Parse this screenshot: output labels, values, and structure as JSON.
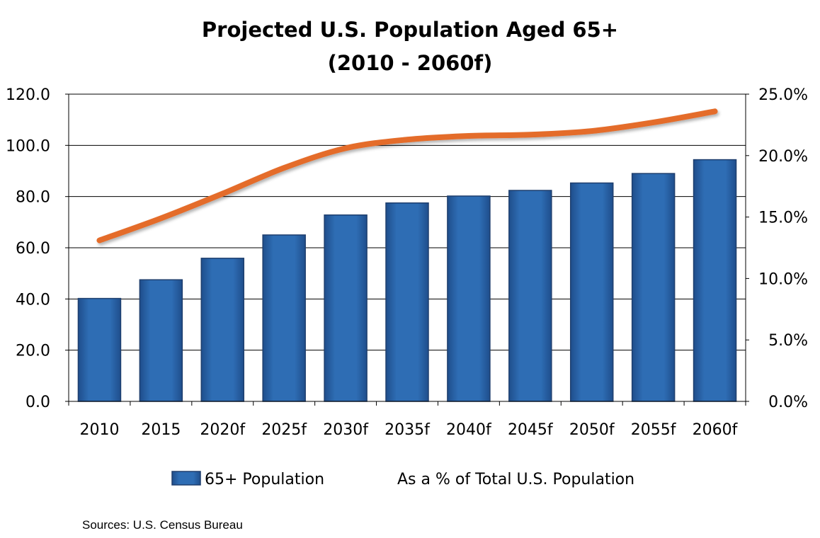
{
  "chart_data": {
    "type": "bar",
    "title": "Projected U.S. Population Aged 65+",
    "subtitle": "(2010 - 2060f)",
    "categories": [
      "2010",
      "2015",
      "2020f",
      "2025f",
      "2030f",
      "2035f",
      "2040f",
      "2045f",
      "2050f",
      "2055f",
      "2060f"
    ],
    "series": [
      {
        "name": "65+ Population",
        "type": "bar",
        "axis": "left",
        "color": "#2E6DB4",
        "values": [
          40.2,
          47.5,
          55.9,
          65.0,
          72.8,
          77.5,
          80.2,
          82.4,
          85.3,
          89.0,
          94.4
        ]
      },
      {
        "name": "As a % of Total U.S. Population",
        "type": "line",
        "axis": "right",
        "color": "#E46C2A",
        "values": [
          13.1,
          14.9,
          16.9,
          19.0,
          20.6,
          21.3,
          21.6,
          21.7,
          22.0,
          22.7,
          23.6
        ]
      }
    ],
    "ylim_left": [
      0,
      120
    ],
    "yticks_left": [
      "0.0",
      "20.0",
      "40.0",
      "60.0",
      "80.0",
      "100.0",
      "120.0"
    ],
    "ylim_right": [
      0,
      25
    ],
    "yticks_right": [
      "0.0%",
      "5.0%",
      "10.0%",
      "15.0%",
      "20.0%",
      "25.0%"
    ],
    "grid": true,
    "legend_position": "bottom"
  },
  "source": "Sources: U.S. Census Bureau"
}
